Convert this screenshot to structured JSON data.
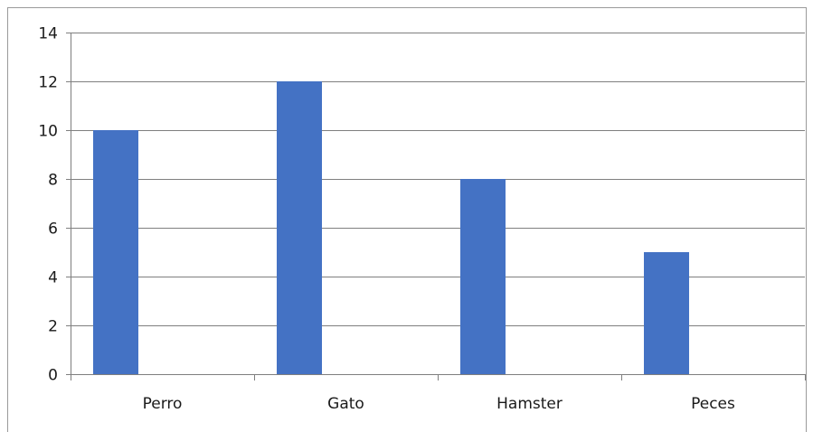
{
  "chart_data": {
    "type": "bar",
    "categories": [
      "Perro",
      "Gato",
      "Hamster",
      "Peces"
    ],
    "values": [
      10,
      12,
      8,
      5
    ],
    "title": "",
    "xlabel": "",
    "ylabel": "",
    "ylim": [
      0,
      14
    ],
    "yticks": [
      0,
      2,
      4,
      6,
      8,
      10,
      12,
      14
    ],
    "grid": true,
    "legend": "none",
    "colors": {
      "bar": "#4472C4",
      "grid": "#7f7f7f",
      "axis": "#7f7f7f",
      "text": "#1a1a1a"
    }
  }
}
